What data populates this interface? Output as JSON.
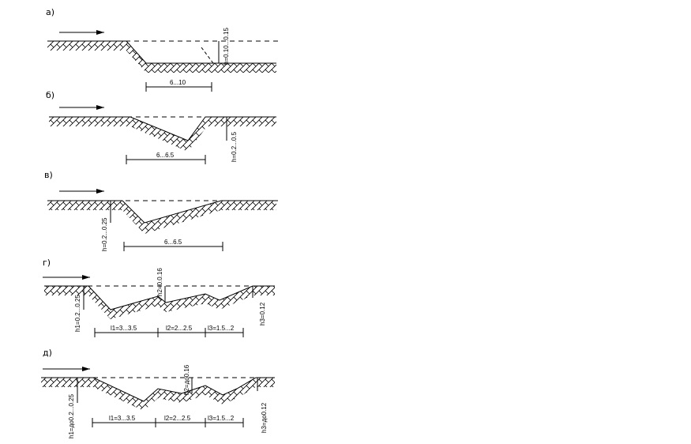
{
  "panels": [
    {
      "id": "a",
      "label": "а)",
      "dims": [
        "6...10"
      ],
      "depth_labels": [
        "h=0.10...0.15"
      ]
    },
    {
      "id": "b",
      "label": "б)",
      "dims": [
        "6...6.5"
      ],
      "depth_labels": [
        "h=0.2...0.5"
      ]
    },
    {
      "id": "v",
      "label": "в)",
      "dims": [
        "6...6.5"
      ],
      "depth_labels": [
        "h=0.2...0.25"
      ]
    },
    {
      "id": "g",
      "label": "г)",
      "dims": [
        "l1=3...3.5",
        "l2=2...2.5",
        "l3=1.5...2"
      ],
      "depth_labels": [
        "h1=0.2...0.25",
        "h2=0.0.16",
        "h3=0.12"
      ]
    },
    {
      "id": "d",
      "label": "д)",
      "dims": [
        "l1=3...3.5",
        "l2=2...2.5",
        "l3=1.5...2"
      ],
      "depth_labels": [
        "h1=до0.2...0.25",
        "h2=до0.16",
        "h3=до0.12"
      ]
    }
  ],
  "colors": {
    "ink": "#000000",
    "background": "#ffffff"
  }
}
